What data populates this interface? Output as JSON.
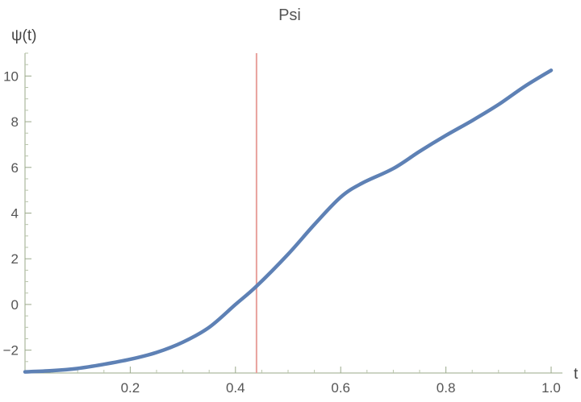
{
  "chart_data": {
    "type": "line",
    "title": "Psi",
    "xlabel": "t",
    "ylabel": "ψ(t)",
    "xlim": [
      0.0,
      1.0
    ],
    "ylim": [
      -3.0,
      11.0
    ],
    "x_ticks": [
      "0.2",
      "0.4",
      "0.6",
      "0.8",
      "1.0"
    ],
    "y_ticks": [
      "−2",
      "0",
      "2",
      "4",
      "6",
      "8",
      "10"
    ],
    "grid": false,
    "series": [
      {
        "color": "#5e81b5",
        "x": [
          0.0,
          0.05,
          0.1,
          0.15,
          0.2,
          0.25,
          0.3,
          0.35,
          0.4,
          0.44,
          0.5,
          0.55,
          0.6,
          0.64,
          0.7,
          0.75,
          0.8,
          0.85,
          0.9,
          0.95,
          1.0
        ],
        "y": [
          -2.95,
          -2.9,
          -2.8,
          -2.62,
          -2.4,
          -2.1,
          -1.65,
          -1.0,
          0.0,
          0.8,
          2.2,
          3.5,
          4.7,
          5.3,
          5.95,
          6.7,
          7.4,
          8.05,
          8.75,
          9.55,
          10.25
        ]
      }
    ],
    "vertical_marker": {
      "x": 0.44,
      "color": "#e8a09c"
    }
  }
}
